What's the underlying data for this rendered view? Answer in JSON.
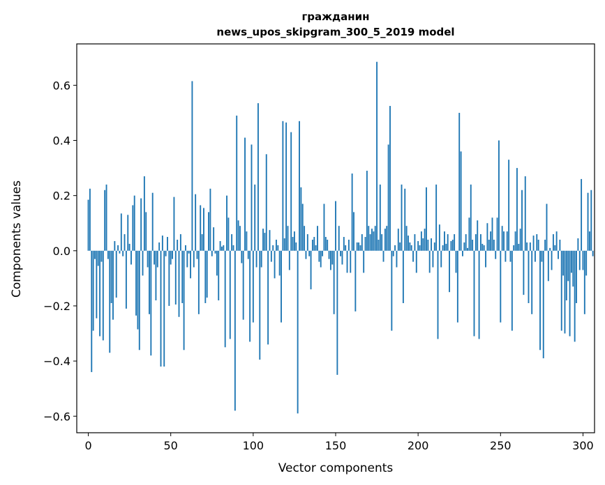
{
  "chart_data": {
    "type": "bar",
    "title": "гражданин",
    "subtitle": "news_upos_skipgram_300_5_2019 model",
    "xlabel": "Vector components",
    "ylabel": "Components values",
    "xlim": [
      -7,
      307
    ],
    "ylim": [
      -0.66,
      0.75
    ],
    "xticks": [
      0,
      50,
      100,
      150,
      200,
      250,
      300
    ],
    "yticks": [
      -0.6,
      -0.4,
      -0.2,
      0.0,
      0.2,
      0.4,
      0.6
    ],
    "ytick_labels": [
      "−0.6",
      "−0.4",
      "−0.2",
      "0.0",
      "0.2",
      "0.4",
      "0.6"
    ],
    "bar_color": "#1f77b4",
    "values": [
      0.185,
      0.225,
      -0.44,
      -0.29,
      -0.03,
      -0.245,
      -0.055,
      -0.31,
      -0.04,
      -0.325,
      0.22,
      0.24,
      -0.03,
      -0.37,
      -0.19,
      -0.25,
      0.035,
      -0.17,
      0.02,
      -0.01,
      0.135,
      -0.02,
      0.06,
      -0.21,
      0.13,
      0.025,
      -0.05,
      0.165,
      0.2,
      -0.235,
      -0.285,
      -0.36,
      0.19,
      -0.09,
      0.27,
      0.14,
      -0.06,
      -0.23,
      -0.38,
      0.21,
      -0.05,
      -0.18,
      -0.06,
      0.03,
      -0.42,
      0.055,
      -0.42,
      -0.02,
      0.05,
      -0.2,
      -0.05,
      -0.03,
      0.195,
      -0.195,
      0.04,
      -0.24,
      0.06,
      -0.19,
      -0.36,
      0.02,
      -0.06,
      -0.01,
      -0.1,
      0.615,
      -0.06,
      0.205,
      -0.03,
      -0.23,
      0.165,
      0.06,
      0.155,
      -0.19,
      -0.17,
      0.14,
      0.225,
      -0.02,
      0.085,
      -0.01,
      -0.09,
      -0.18,
      0.035,
      0.015,
      0.02,
      -0.35,
      0.2,
      0.12,
      -0.32,
      0.06,
      0.02,
      -0.58,
      0.49,
      0.11,
      0.09,
      -0.045,
      -0.25,
      0.41,
      0.07,
      -0.03,
      -0.33,
      0.385,
      -0.26,
      0.24,
      -0.06,
      0.535,
      -0.395,
      -0.06,
      0.08,
      0.065,
      0.35,
      -0.34,
      0.075,
      -0.04,
      0.02,
      -0.1,
      0.04,
      0.02,
      -0.09,
      -0.26,
      0.47,
      0.045,
      0.465,
      0.09,
      -0.07,
      0.43,
      0.05,
      0.07,
      0.03,
      -0.59,
      0.47,
      0.23,
      0.17,
      0.09,
      -0.03,
      0.06,
      -0.02,
      -0.14,
      0.04,
      0.05,
      0.02,
      0.09,
      -0.04,
      -0.06,
      -0.02,
      0.17,
      0.05,
      0.04,
      -0.03,
      -0.07,
      -0.05,
      -0.23,
      0.18,
      -0.45,
      0.09,
      -0.02,
      -0.05,
      0.05,
      0.02,
      -0.08,
      0.04,
      -0.08,
      0.28,
      0.14,
      -0.22,
      0.03,
      0.03,
      0.02,
      0.06,
      -0.08,
      0.05,
      0.29,
      0.09,
      0.06,
      0.08,
      0.07,
      0.09,
      0.685,
      0.04,
      0.24,
      0.06,
      -0.04,
      0.08,
      0.09,
      0.385,
      0.525,
      -0.29,
      -0.02,
      0.02,
      -0.06,
      0.08,
      0.03,
      0.24,
      -0.19,
      0.225,
      0.09,
      0.055,
      0.03,
      0.02,
      -0.04,
      0.06,
      -0.08,
      0.035,
      0.02,
      0.07,
      0.045,
      0.08,
      0.23,
      0.04,
      -0.08,
      0.045,
      -0.06,
      0.03,
      0.24,
      -0.32,
      0.095,
      -0.06,
      0.02,
      0.07,
      0.025,
      0.06,
      -0.15,
      0.035,
      0.04,
      0.06,
      -0.08,
      -0.26,
      0.5,
      0.36,
      -0.02,
      0.03,
      0.06,
      0.01,
      0.12,
      0.24,
      0.04,
      -0.31,
      0.06,
      0.11,
      -0.32,
      0.06,
      0.025,
      0.02,
      -0.06,
      0.1,
      0.04,
      0.07,
      0.12,
      0.04,
      -0.03,
      0.12,
      0.4,
      -0.26,
      0.09,
      0.07,
      -0.04,
      0.07,
      0.33,
      -0.04,
      -0.29,
      0.02,
      0.07,
      0.3,
      0.025,
      0.08,
      0.22,
      -0.16,
      0.27,
      0.03,
      -0.19,
      0.03,
      -0.23,
      0.055,
      -0.04,
      0.06,
      0.04,
      -0.36,
      -0.04,
      -0.39,
      0.04,
      0.17,
      -0.11,
      0.01,
      -0.07,
      0.06,
      0.02,
      0.07,
      -0.03,
      0.04,
      -0.29,
      -0.09,
      -0.3,
      -0.18,
      -0.11,
      -0.31,
      -0.08,
      -0.13,
      -0.33,
      -0.19,
      0.045,
      -0.07,
      0.26,
      -0.07,
      -0.23,
      -0.09,
      0.21,
      0.07,
      0.22,
      -0.02
    ]
  }
}
